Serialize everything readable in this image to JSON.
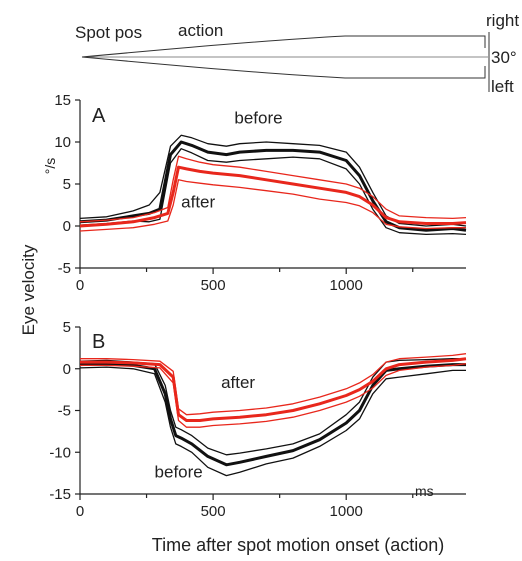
{
  "colors": {
    "before": "#111111",
    "after": "#e8271c",
    "axis": "#222222",
    "schematic": "#333333"
  },
  "schematic": {
    "spot_label": "Spot pos",
    "action_label": "action",
    "right_label": "right",
    "amplitude_label": "30°",
    "left_label": "left"
  },
  "shared": {
    "ylabel": "Eye velocity",
    "units_label": "°/s",
    "xlabel": "Time after spot motion onset (action)",
    "xunits_label": "ms"
  },
  "chart_data": [
    {
      "type": "line",
      "panel_label": "A",
      "xlim": [
        0,
        1450
      ],
      "ylim": [
        -5,
        15
      ],
      "xticks": [
        "0",
        "500",
        "1000"
      ],
      "yticks": [
        "-5",
        "0",
        "5",
        "10",
        "15"
      ],
      "grid": false,
      "series": [
        {
          "name": "before",
          "role": "mean",
          "x": [
            0,
            100,
            200,
            260,
            300,
            340,
            380,
            420,
            480,
            550,
            600,
            700,
            800,
            900,
            1000,
            1050,
            1100,
            1150,
            1200,
            1300,
            1400,
            1450
          ],
          "y": [
            0.5,
            0.7,
            1.2,
            1.5,
            2,
            8.5,
            10,
            9.6,
            8.8,
            8.5,
            8.8,
            9,
            9,
            8.8,
            7.8,
            6,
            3,
            0.5,
            -0.2,
            -0.5,
            -0.3,
            -0.5
          ]
        },
        {
          "role": "band-upper",
          "x": [
            0,
            100,
            200,
            260,
            300,
            340,
            380,
            420,
            480,
            550,
            600,
            700,
            800,
            900,
            1000,
            1050,
            1100,
            1150,
            1200,
            1300,
            1400,
            1450
          ],
          "y": [
            0.9,
            1.1,
            1.8,
            2.5,
            4,
            9.5,
            10.8,
            10.5,
            9.8,
            9.5,
            9.8,
            10,
            9.8,
            9.6,
            8.8,
            7,
            4,
            1.2,
            0.3,
            0,
            0.2,
            0
          ]
        },
        {
          "role": "band-lower",
          "x": [
            0,
            100,
            200,
            260,
            300,
            340,
            380,
            420,
            480,
            550,
            600,
            700,
            800,
            900,
            1000,
            1050,
            1100,
            1150,
            1200,
            1300,
            1400,
            1450
          ],
          "y": [
            0.1,
            0.3,
            0.6,
            0.5,
            0.8,
            7.5,
            9.2,
            8.7,
            7.8,
            7.6,
            7.8,
            8,
            8.2,
            8,
            6.8,
            5,
            2,
            -0.2,
            -0.8,
            -1,
            -0.9,
            -1
          ]
        },
        {
          "name": "after",
          "role": "mean",
          "x": [
            0,
            100,
            200,
            280,
            330,
            350,
            370,
            400,
            450,
            500,
            600,
            700,
            800,
            900,
            1000,
            1050,
            1100,
            1150,
            1200,
            1300,
            1400,
            1450
          ],
          "y": [
            0,
            0.2,
            0.5,
            1,
            1.5,
            4,
            7,
            6.8,
            6.5,
            6.3,
            6,
            5.5,
            5,
            4.5,
            4,
            3.5,
            2.5,
            1,
            0.5,
            0.3,
            0.3,
            0.4
          ]
        },
        {
          "role": "band-upper",
          "x": [
            0,
            100,
            200,
            280,
            330,
            350,
            370,
            400,
            450,
            500,
            600,
            700,
            800,
            900,
            1000,
            1050,
            1100,
            1150,
            1200,
            1300,
            1400,
            1450
          ],
          "y": [
            0.5,
            0.7,
            1,
            1.6,
            2.2,
            5.5,
            8.3,
            8,
            7.6,
            7.3,
            7,
            6.5,
            6,
            5.5,
            5,
            4.5,
            3.5,
            2,
            1.2,
            1,
            0.9,
            1
          ]
        },
        {
          "role": "band-lower",
          "x": [
            0,
            100,
            200,
            280,
            330,
            350,
            370,
            400,
            450,
            500,
            600,
            700,
            800,
            900,
            1000,
            1050,
            1100,
            1150,
            1200,
            1300,
            1400,
            1450
          ],
          "y": [
            -0.6,
            -0.4,
            -0.2,
            0.2,
            0.6,
            2.5,
            5.5,
            5.3,
            5.1,
            4.9,
            4.6,
            4.2,
            3.8,
            3.2,
            2.8,
            2.4,
            1.6,
            0.2,
            -0.1,
            -0.3,
            -0.2,
            -0.2
          ]
        }
      ],
      "annotations": [
        {
          "text": "before",
          "x": 580,
          "y": 12.2
        },
        {
          "text": "after",
          "x": 380,
          "y": 2.2
        }
      ]
    },
    {
      "type": "line",
      "panel_label": "B",
      "xlim": [
        0,
        1450
      ],
      "ylim": [
        -15,
        5
      ],
      "xticks": [
        "0",
        "500",
        "1000"
      ],
      "yticks": [
        "-15",
        "-10",
        "-5",
        "0",
        "5"
      ],
      "grid": false,
      "series": [
        {
          "name": "before",
          "role": "mean",
          "x": [
            0,
            100,
            200,
            280,
            320,
            340,
            360,
            380,
            420,
            480,
            550,
            600,
            700,
            800,
            900,
            1000,
            1050,
            1100,
            1150,
            1200,
            1300,
            1400,
            1450
          ],
          "y": [
            0.5,
            0.6,
            0.4,
            0,
            -3,
            -6,
            -8,
            -8.3,
            -9,
            -10.5,
            -11.5,
            -11.2,
            -10.5,
            -9.8,
            -8.5,
            -6.5,
            -5,
            -2,
            -0.2,
            0,
            0.3,
            0.5,
            0.5
          ]
        },
        {
          "role": "band-upper",
          "x": [
            0,
            100,
            200,
            280,
            320,
            340,
            360,
            380,
            420,
            480,
            550,
            600,
            700,
            800,
            900,
            1000,
            1050,
            1100,
            1150,
            1200,
            1300,
            1400,
            1450
          ],
          "y": [
            0.9,
            1,
            0.8,
            0.6,
            -2,
            -5,
            -7,
            -7.3,
            -8,
            -9.5,
            -10.3,
            -10.1,
            -9.6,
            -9,
            -7.8,
            -5.5,
            -4,
            -1,
            0.8,
            1,
            1.1,
            1.2,
            1.2
          ]
        },
        {
          "role": "band-lower",
          "x": [
            0,
            100,
            200,
            280,
            320,
            340,
            360,
            380,
            420,
            480,
            550,
            600,
            700,
            800,
            900,
            1000,
            1050,
            1100,
            1150,
            1200,
            1300,
            1400,
            1450
          ],
          "y": [
            0.1,
            0.2,
            0,
            -0.6,
            -4,
            -7,
            -9,
            -9.3,
            -10,
            -11.8,
            -12.8,
            -12.4,
            -11.4,
            -10.7,
            -9.3,
            -7.4,
            -6,
            -3,
            -1.2,
            -1,
            -0.6,
            -0.2,
            -0.2
          ]
        },
        {
          "name": "after",
          "role": "mean",
          "x": [
            0,
            100,
            200,
            300,
            350,
            370,
            400,
            450,
            500,
            600,
            700,
            800,
            900,
            1000,
            1050,
            1100,
            1150,
            1200,
            1300,
            1400,
            1450
          ],
          "y": [
            0.8,
            0.8,
            0.7,
            0.5,
            -1,
            -5.5,
            -6.2,
            -6.2,
            -6,
            -5.8,
            -5.5,
            -5,
            -4.2,
            -3.2,
            -2.5,
            -1.5,
            0,
            0.5,
            0.8,
            1,
            1.2
          ]
        },
        {
          "role": "band-upper",
          "x": [
            0,
            100,
            200,
            300,
            350,
            370,
            400,
            450,
            500,
            600,
            700,
            800,
            900,
            1000,
            1050,
            1100,
            1150,
            1200,
            1300,
            1400,
            1450
          ],
          "y": [
            1.2,
            1.2,
            1.1,
            0.9,
            -0.3,
            -4.8,
            -5.5,
            -5.4,
            -5.2,
            -5,
            -4.7,
            -4.2,
            -3.4,
            -2.4,
            -1.7,
            -0.7,
            0.8,
            1.2,
            1.4,
            1.6,
            1.8
          ]
        },
        {
          "role": "band-lower",
          "x": [
            0,
            100,
            200,
            300,
            350,
            370,
            400,
            450,
            500,
            600,
            700,
            800,
            900,
            1000,
            1050,
            1100,
            1150,
            1200,
            1300,
            1400,
            1450
          ],
          "y": [
            0.4,
            0.4,
            0.3,
            0.1,
            -1.7,
            -6.2,
            -7,
            -7,
            -6.8,
            -6.6,
            -6.3,
            -5.8,
            -5,
            -4,
            -3.3,
            -2.3,
            -0.8,
            -0.2,
            0.2,
            0.4,
            0.6
          ]
        }
      ],
      "annotations": [
        {
          "text": "after",
          "x": 530,
          "y": -2.3
        },
        {
          "text": "before",
          "x": 280,
          "y": -13
        }
      ]
    }
  ]
}
